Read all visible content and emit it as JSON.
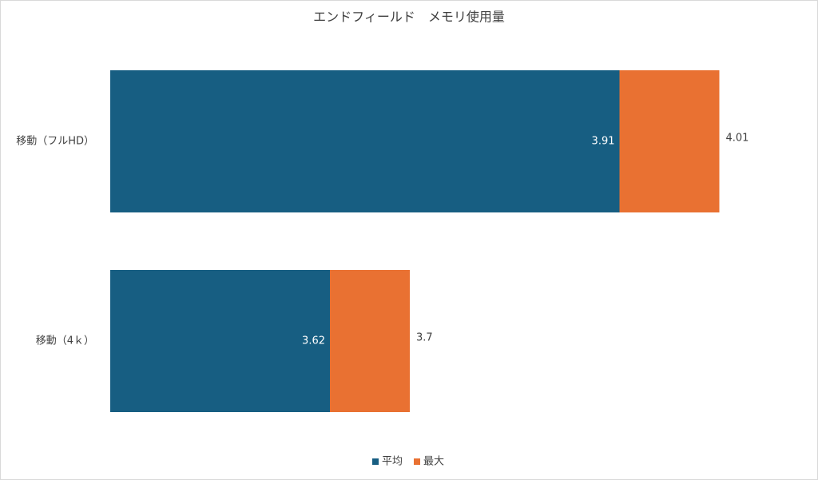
{
  "chart_data": {
    "type": "bar",
    "orientation": "horizontal",
    "overlap": true,
    "title": "エンドフィールド　メモリ使用量",
    "categories": [
      "移動（フルHD）",
      "移動（4ｋ）"
    ],
    "series": [
      {
        "name": "平均",
        "color": "#175e82",
        "values": [
          3.91,
          3.62
        ]
      },
      {
        "name": "最大",
        "color": "#e97132",
        "values": [
          4.01,
          3.7
        ]
      }
    ],
    "xlim": [
      3.4,
      4.05
    ],
    "legend": "bottom"
  }
}
